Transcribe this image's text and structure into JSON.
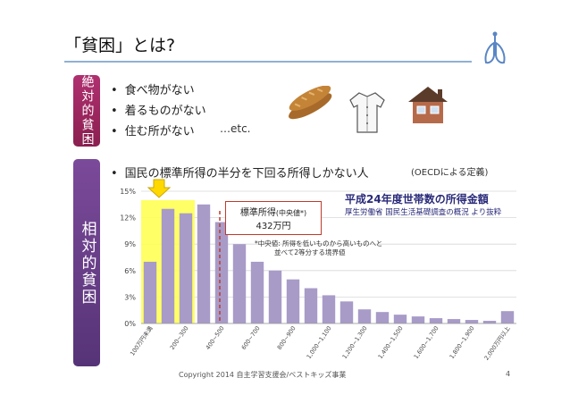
{
  "slide": {
    "title": "「貧困」とは?",
    "absolute_label": "絶対的貧困",
    "relative_label": "相対的貧困",
    "absolute_bullets": [
      "食べ物がない",
      "着るものがない",
      "住む所がない"
    ],
    "etc": "…etc.",
    "relative_bullet": "国民の標準所得の半分を下回る所得しかない人",
    "oecd_note": "(OECDによる定義)",
    "chart_title": "平成24年度世帯数の所得金額",
    "chart_source": "厚生労働省 国民生活基礎調査の概況 より抜粋",
    "median_label": "標準所得",
    "median_suffix": "(中央値*)",
    "median_value": "432万円",
    "median_note_line1": "*中央値: 所得を低いものから高いものへと",
    "median_note_line2": "並べて2等分する境界値",
    "footer": "Copyright 2014 自主学習支援会/ベストキッズ事業",
    "page_number": "4",
    "icons": [
      "bread-icon",
      "shirt-icon",
      "house-icon",
      "lung-logo-icon",
      "down-arrow-icon"
    ]
  },
  "chart_data": {
    "type": "bar",
    "y_ticks": [
      "0%",
      "3%",
      "6%",
      "9%",
      "12%",
      "15%"
    ],
    "ylim": [
      0,
      15
    ],
    "x_tick_labels": [
      "100万円未満",
      "200~300",
      "400~500",
      "600~700",
      "800~900",
      "1,000~1,100",
      "1,200~1,300",
      "1,400~1,500",
      "1,600~1,700",
      "1,800~1,900",
      "2,000万円以上"
    ],
    "values": [
      7.0,
      13.0,
      12.5,
      13.5,
      11.5,
      9.0,
      7.0,
      6.0,
      5.0,
      4.0,
      3.2,
      2.5,
      1.6,
      1.3,
      1.0,
      0.8,
      0.6,
      0.5,
      0.4,
      0.3,
      1.4
    ],
    "highlighted_bars": [
      0,
      1,
      2
    ],
    "median_bar_index": 4,
    "bar_color": "#a89bc8",
    "highlight_color": "#ffff55",
    "median_line_color": "#c03a2b",
    "grid": true
  }
}
